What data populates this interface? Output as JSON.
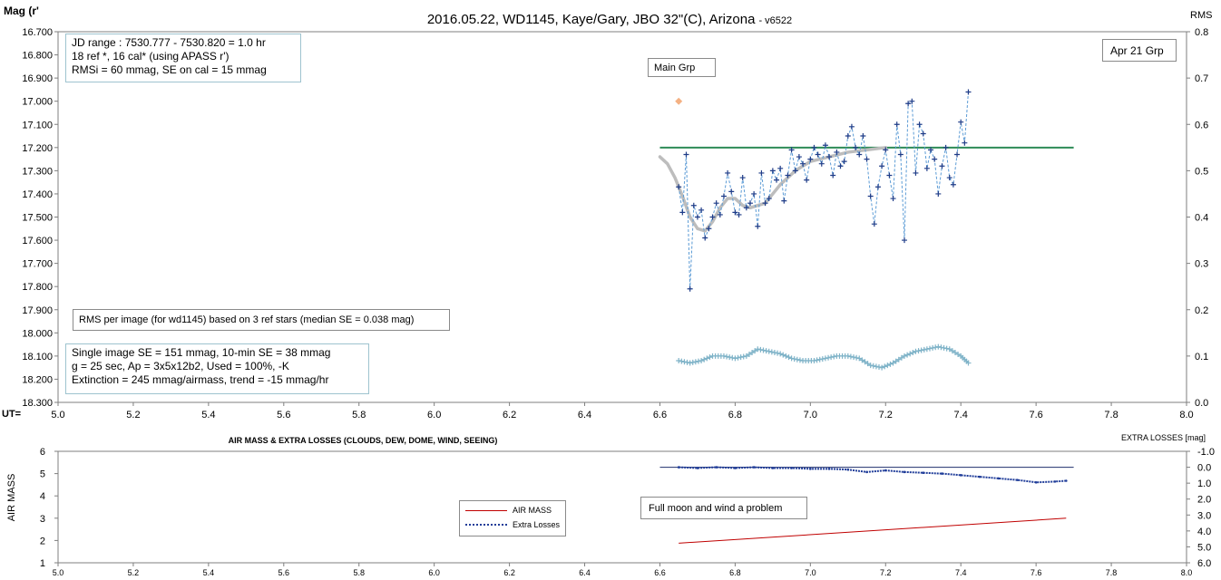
{
  "top_chart": {
    "title": "2016.05.22,  WD1145, Kaye/Gary, JBO 32\"(C), Arizona",
    "title_suffix": "- v6522",
    "y_left_label": "Mag (r'",
    "y_right_label": "RMS",
    "x_axis_label": "UT=",
    "notes": {
      "jd_box": [
        "JD range  : 7530.777 - 7530.820  = 1.0 hr",
        "  18 ref *, 16 cal* (using APASS r')",
        "RMSi = 60 mmag, SE on cal = 15 mmag"
      ],
      "main_grp": "Main Grp",
      "apr_grp": "Apr 21 Grp",
      "rms_note": "RMS per image (for wd1145) based on 3 ref stars (median SE = 0.038 mag)",
      "stats_box": [
        "Single image SE = 151 mmag, 10-min SE = 38 mmag",
        "g = 25 sec, Ap = 3x5x12b2, Used = 100%, -K",
        "Extinction = 245 mmag/airmass, trend = -15 mmag/hr"
      ]
    }
  },
  "bottom_chart": {
    "title": "AIR MASS & EXTRA LOSSES (CLOUDS, DEW, DOME, WIND, SEEING)",
    "y_left_label": "AIR MASS",
    "y_right_label": "EXTRA LOSSES [mag]",
    "legend": {
      "air_mass": "AIR MASS",
      "extra_losses": "Extra Losses"
    },
    "note": "Full moon and wind a problem"
  },
  "colors": {
    "mag_series": "#1f3c88",
    "mag_line": "#5b9bd5",
    "trend": "#bdbdbd",
    "reference_line": "#2e8b57",
    "marker": "#f4b183",
    "rms": "#7fb3c8",
    "air_mass": "#c00000",
    "extra_losses": "#1f3c99"
  },
  "chart_data": [
    {
      "type": "scatter",
      "title": "2016.05.22,  WD1145, Kaye/Gary, JBO 32\"(C), Arizona - v6522",
      "xlabel": "UT=",
      "ylabel": "Mag (r'",
      "y2label": "RMS",
      "xlim": [
        5.0,
        8.0
      ],
      "ylim": [
        16.7,
        18.3
      ],
      "y_reversed": true,
      "y2lim": [
        0.0,
        0.8
      ],
      "x_ticks": [
        "5.0",
        "5.2",
        "5.4",
        "5.6",
        "5.8",
        "6.0",
        "6.2",
        "6.4",
        "6.6",
        "6.8",
        "7.0",
        "7.2",
        "7.4",
        "7.6",
        "7.8",
        "8.0"
      ],
      "y_ticks": [
        "16.700",
        "16.800",
        "16.900",
        "17.000",
        "17.100",
        "17.200",
        "17.300",
        "17.400",
        "17.500",
        "17.600",
        "17.700",
        "17.800",
        "17.900",
        "18.000",
        "18.100",
        "18.200",
        "18.300"
      ],
      "y2_ticks": [
        "0.0",
        "0.1",
        "0.2",
        "0.3",
        "0.4",
        "0.5",
        "0.6",
        "0.7",
        "0.8"
      ],
      "grid": false,
      "series": [
        {
          "kind": "scatter-line",
          "x": [
            6.65,
            6.66,
            6.67,
            6.68,
            6.69,
            6.7,
            6.71,
            6.72,
            6.73,
            6.74,
            6.75,
            6.76,
            6.77,
            6.78,
            6.79,
            6.8,
            6.81,
            6.82,
            6.83,
            6.84,
            6.85,
            6.86,
            6.87,
            6.88,
            6.89,
            6.9,
            6.91,
            6.92,
            6.93,
            6.94,
            6.95,
            6.96,
            6.97,
            6.98,
            6.99,
            7.0,
            7.01,
            7.02,
            7.03,
            7.04,
            7.05,
            7.06,
            7.07,
            7.08,
            7.09,
            7.1,
            7.11,
            7.12,
            7.13,
            7.14,
            7.15,
            7.16,
            7.17,
            7.18,
            7.19,
            7.2,
            7.21,
            7.22,
            7.23,
            7.24,
            7.25,
            7.26,
            7.27,
            7.28,
            7.29,
            7.3,
            7.31,
            7.32,
            7.33,
            7.34,
            7.35,
            7.36,
            7.37,
            7.38,
            7.39,
            7.4,
            7.41,
            7.42
          ],
          "y": [
            17.37,
            17.48,
            17.23,
            17.81,
            17.45,
            17.5,
            17.47,
            17.59,
            17.55,
            17.5,
            17.44,
            17.49,
            17.41,
            17.31,
            17.39,
            17.48,
            17.49,
            17.33,
            17.46,
            17.44,
            17.4,
            17.54,
            17.31,
            17.44,
            17.42,
            17.3,
            17.34,
            17.29,
            17.43,
            17.32,
            17.21,
            17.3,
            17.24,
            17.27,
            17.34,
            17.25,
            17.2,
            17.23,
            17.27,
            17.19,
            17.24,
            17.32,
            17.22,
            17.28,
            17.26,
            17.15,
            17.11,
            17.2,
            17.23,
            17.15,
            17.25,
            17.41,
            17.53,
            17.37,
            17.28,
            17.21,
            17.32,
            17.42,
            17.1,
            17.23,
            17.6,
            17.01,
            17.0,
            17.31,
            17.1,
            17.14,
            17.29,
            17.21,
            17.25,
            17.4,
            17.28,
            17.2,
            17.33,
            17.36,
            17.23,
            17.09,
            17.18,
            16.96
          ]
        },
        {
          "kind": "trend",
          "x": [
            6.6,
            6.62,
            6.64,
            6.66,
            6.68,
            6.7,
            6.72,
            6.74,
            6.76,
            6.78,
            6.8,
            6.82,
            6.84,
            6.86,
            6.88,
            6.9,
            6.92,
            6.94,
            6.96,
            6.98,
            7.0,
            7.05,
            7.1,
            7.15,
            7.2
          ],
          "y": [
            17.24,
            17.27,
            17.33,
            17.41,
            17.5,
            17.55,
            17.56,
            17.52,
            17.46,
            17.42,
            17.42,
            17.45,
            17.46,
            17.45,
            17.44,
            17.4,
            17.36,
            17.33,
            17.3,
            17.28,
            17.26,
            17.24,
            17.22,
            17.21,
            17.2
          ]
        },
        {
          "kind": "hline",
          "x": [
            6.6,
            7.7
          ],
          "y": [
            17.2,
            17.2
          ]
        },
        {
          "kind": "marker",
          "x": [
            6.65
          ],
          "y": [
            17.0
          ]
        },
        {
          "kind": "rms",
          "axis": "y2",
          "x": [
            6.65,
            6.68,
            6.71,
            6.74,
            6.77,
            6.8,
            6.83,
            6.86,
            6.89,
            6.92,
            6.95,
            6.98,
            7.01,
            7.04,
            7.07,
            7.1,
            7.13,
            7.16,
            7.19,
            7.22,
            7.25,
            7.28,
            7.31,
            7.34,
            7.37,
            7.4,
            7.42
          ],
          "y": [
            0.09,
            0.085,
            0.09,
            0.1,
            0.1,
            0.095,
            0.1,
            0.115,
            0.11,
            0.105,
            0.095,
            0.09,
            0.09,
            0.095,
            0.1,
            0.1,
            0.095,
            0.08,
            0.075,
            0.085,
            0.1,
            0.11,
            0.115,
            0.12,
            0.115,
            0.1,
            0.085
          ]
        }
      ]
    },
    {
      "type": "line",
      "title": "AIR MASS & EXTRA LOSSES (CLOUDS, DEW, DOME, WIND, SEEING)",
      "xlabel": "",
      "ylabel": "AIR MASS",
      "y2label": "EXTRA LOSSES [mag]",
      "xlim": [
        5.0,
        8.0
      ],
      "ylim": [
        1,
        6
      ],
      "y2lim": [
        -1.0,
        6.0
      ],
      "y2_reversed": true,
      "x_ticks": [
        "5.0",
        "5.2",
        "5.4",
        "5.6",
        "5.8",
        "6.0",
        "6.2",
        "6.4",
        "6.6",
        "6.8",
        "7.0",
        "7.2",
        "7.4",
        "7.6",
        "7.8",
        "8.0"
      ],
      "y_ticks": [
        "1",
        "2",
        "3",
        "4",
        "5",
        "6"
      ],
      "y2_ticks": [
        "-1.0",
        "0.0",
        "1.0",
        "2.0",
        "3.0",
        "4.0",
        "5.0",
        "6.0"
      ],
      "legend_position": "middle-left",
      "series": [
        {
          "name": "AIR MASS",
          "axis": "y",
          "x": [
            6.65,
            7.68
          ],
          "y": [
            1.88,
            3.0
          ]
        },
        {
          "name": "Extra Losses",
          "axis": "y2",
          "x": [
            6.65,
            6.7,
            6.75,
            6.8,
            6.85,
            6.9,
            6.95,
            7.0,
            7.05,
            7.1,
            7.15,
            7.2,
            7.25,
            7.3,
            7.35,
            7.4,
            7.45,
            7.5,
            7.55,
            7.6,
            7.65,
            7.68
          ],
          "y": [
            0.0,
            0.05,
            0.0,
            0.05,
            0.0,
            0.05,
            0.05,
            0.1,
            0.1,
            0.15,
            0.3,
            0.2,
            0.3,
            0.35,
            0.4,
            0.5,
            0.6,
            0.7,
            0.8,
            0.95,
            0.9,
            0.85
          ]
        },
        {
          "kind": "hline",
          "axis": "y2",
          "x": [
            6.6,
            7.7
          ],
          "y": [
            0.0,
            0.0
          ]
        }
      ]
    }
  ]
}
